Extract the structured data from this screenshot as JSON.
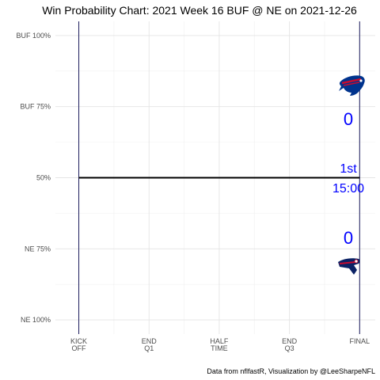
{
  "chart_data": {
    "type": "line",
    "title": "Win Probability Chart: 2021 Week 16 BUF @ NE on 2021-12-26",
    "caption": "Data from nflfastR, Visualization by @LeeSharpeNFL",
    "y_ticks": [
      {
        "value": 100,
        "label": "BUF 100%"
      },
      {
        "value": 75,
        "label": "BUF 75%"
      },
      {
        "value": 50,
        "label": "50%"
      },
      {
        "value": 25,
        "label": "NE 75%"
      },
      {
        "value": 0,
        "label": "NE 100%"
      }
    ],
    "x_ticks": [
      {
        "value": 0,
        "lines": [
          "KICK",
          "OFF"
        ]
      },
      {
        "value": 900,
        "lines": [
          "END",
          "Q1"
        ]
      },
      {
        "value": 1800,
        "lines": [
          "HALF",
          "TIME"
        ]
      },
      {
        "value": 2700,
        "lines": [
          "END",
          "Q3"
        ]
      },
      {
        "value": 3600,
        "lines": [
          "FINAL"
        ]
      }
    ],
    "xlim": [
      -300,
      3800
    ],
    "ylim": [
      -5,
      105
    ],
    "series": [
      {
        "x": [
          0,
          3600
        ],
        "y": [
          50,
          50
        ]
      }
    ],
    "vlines": [
      0,
      3600
    ],
    "grid": true,
    "home_team": {
      "abbr": "BUF",
      "score": "0",
      "color": "#0000ff",
      "logo": "bills-logo"
    },
    "away_team": {
      "abbr": "NE",
      "score": "0",
      "color": "#0000ff",
      "logo": "patriots-logo"
    },
    "period": "1st",
    "clock": "15:00"
  }
}
